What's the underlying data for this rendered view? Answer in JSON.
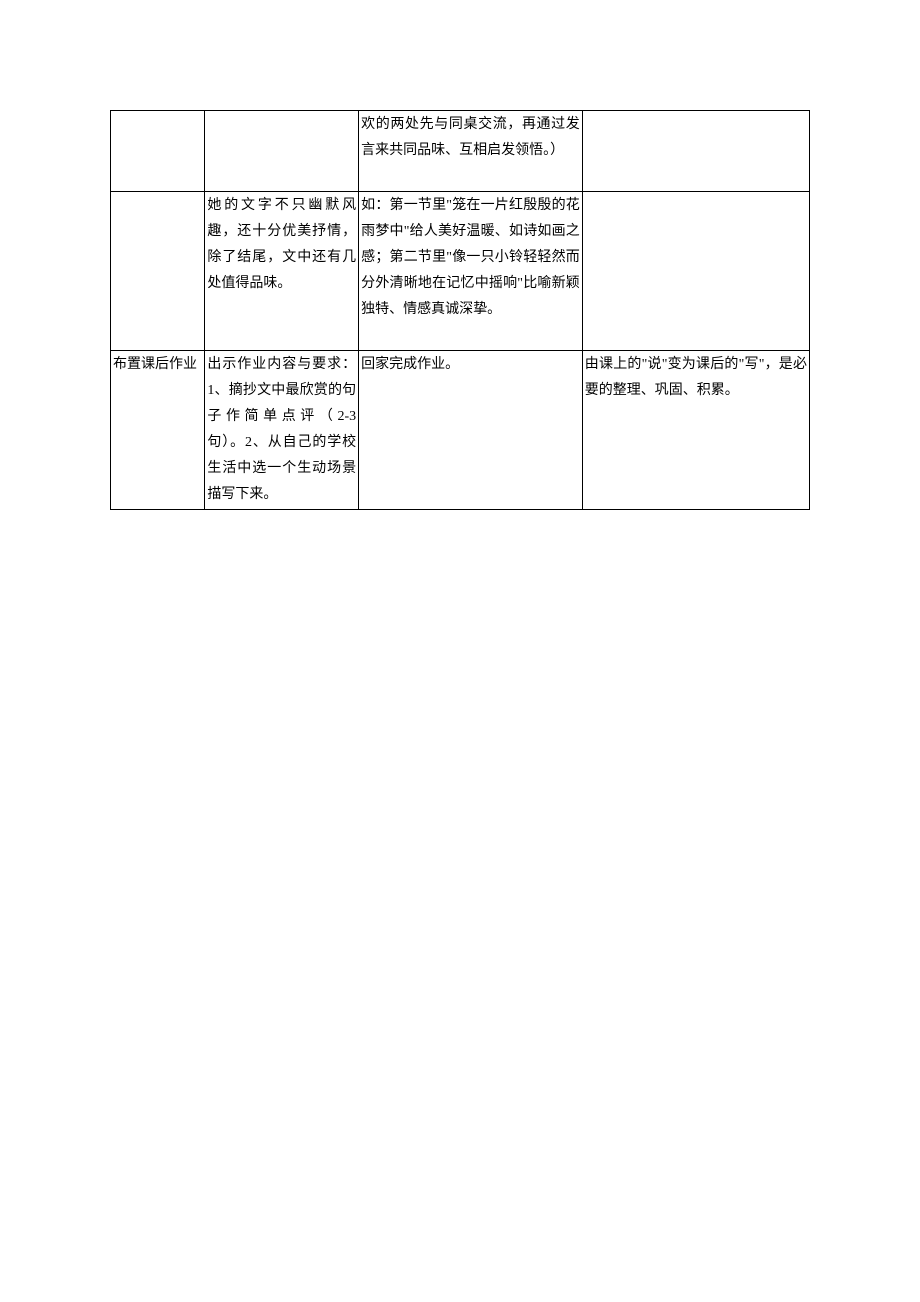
{
  "table": {
    "border_color": "#000000",
    "background_color": "#ffffff",
    "font_family": "SimSun",
    "font_size": 14,
    "line_height": 26,
    "columns": [
      {
        "width_pct": 13.5
      },
      {
        "width_pct": 22
      },
      {
        "width_pct": 32
      },
      {
        "width_pct": 32.5
      }
    ],
    "rows": [
      {
        "cells": [
          "",
          "",
          "欢的两处先与同桌交流，再通过发言来共同品味、互相启发领悟。）",
          ""
        ]
      },
      {
        "cells": [
          "",
          "她的文字不只幽默风趣，还十分优美抒情，除了结尾，文中还有几处值得品味。",
          "如：第一节里\"笼在一片红殷殷的花雨梦中\"给人美好温暖、如诗如画之感；第二节里\"像一只小铃轻轻然而分外清晰地在记忆中摇响\"比喻新颖独特、情感真诚深挚。",
          ""
        ]
      },
      {
        "cells": [
          "布置课后作业",
          "出示作业内容与要求：1、摘抄文中最欣赏的句子作简单点评（2-3句）。2、从自己的学校生活中选一个生动场景描写下来。",
          "回家完成作业。",
          "由课上的\"说\"变为课后的\"写\"，是必要的整理、巩固、积累。"
        ]
      }
    ]
  }
}
